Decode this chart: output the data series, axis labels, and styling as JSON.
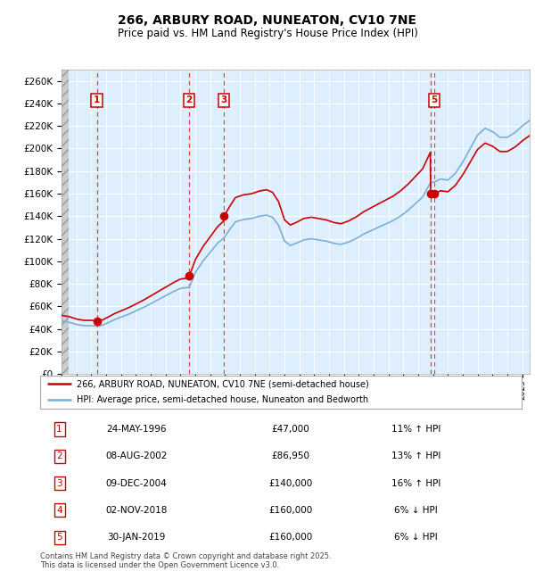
{
  "title1": "266, ARBURY ROAD, NUNEATON, CV10 7NE",
  "title2": "Price paid vs. HM Land Registry's House Price Index (HPI)",
  "legend_label1": "266, ARBURY ROAD, NUNEATON, CV10 7NE (semi-detached house)",
  "legend_label2": "HPI: Average price, semi-detached house, Nuneaton and Bedworth",
  "footer": "Contains HM Land Registry data © Crown copyright and database right 2025.\nThis data is licensed under the Open Government Licence v3.0.",
  "transactions": [
    {
      "num": 1,
      "date": "24-MAY-1996",
      "price": 47000,
      "pct": "11%",
      "dir": "↑"
    },
    {
      "num": 2,
      "date": "08-AUG-2002",
      "price": 86950,
      "pct": "13%",
      "dir": "↑"
    },
    {
      "num": 3,
      "date": "09-DEC-2004",
      "price": 140000,
      "pct": "16%",
      "dir": "↑"
    },
    {
      "num": 4,
      "date": "02-NOV-2018",
      "price": 160000,
      "pct": "6%",
      "dir": "↓"
    },
    {
      "num": 5,
      "date": "30-JAN-2019",
      "price": 160000,
      "pct": "6%",
      "dir": "↓"
    }
  ],
  "transaction_years": [
    1996.38,
    2002.59,
    2004.93,
    2018.84,
    2019.07
  ],
  "show_box": [
    true,
    true,
    true,
    false,
    true
  ],
  "ylim": [
    0,
    270000
  ],
  "xlim_start": 1994.0,
  "xlim_end": 2025.5,
  "bg_color": "#ddeeff",
  "red_line_color": "#cc0000",
  "blue_line_color": "#7ab0d4",
  "marker_box_color": "#cc0000",
  "dashed_line_color": "#dd4444",
  "marker_dot_color": "#cc0000",
  "marker_dot_size": 6
}
